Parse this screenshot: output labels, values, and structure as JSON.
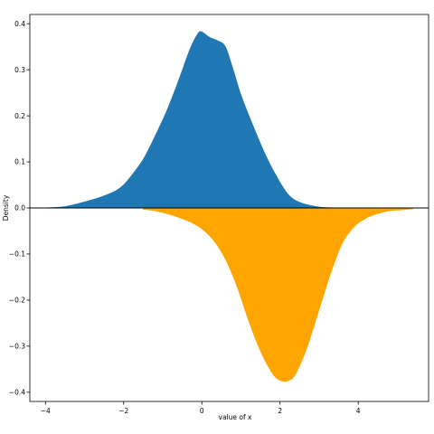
{
  "chart_data": {
    "type": "area",
    "title": "",
    "xlabel": "value of x",
    "ylabel": "Density",
    "xlim": [
      -4.4,
      5.8
    ],
    "ylim": [
      -0.42,
      0.42
    ],
    "grid": false,
    "legend": "none",
    "xticks": [
      -4,
      -2,
      0,
      2,
      4
    ],
    "xtick_labels": [
      "−4",
      "−2",
      "0",
      "2",
      "4"
    ],
    "yticks": [
      0.4,
      0.3,
      0.2,
      0.1,
      0.0,
      -0.1,
      -0.2,
      -0.3,
      -0.4
    ],
    "ytick_labels": [
      "0.4",
      "0.3",
      "0.2",
      "0.1",
      "0.0",
      "−0.1",
      "−0.2",
      "−0.3",
      "−0.4"
    ],
    "series": [
      {
        "color": "#1f77b4",
        "x": [
          -4.0,
          -3.5,
          -3.0,
          -2.6,
          -2.2,
          -2.0,
          -1.8,
          -1.5,
          -1.2,
          -0.9,
          -0.6,
          -0.3,
          -0.1,
          0.0,
          0.2,
          0.4,
          0.6,
          0.8,
          1.0,
          1.3,
          1.6,
          1.9,
          2.2,
          2.5,
          3.0,
          3.5
        ],
        "y": [
          0.0,
          0.003,
          0.013,
          0.023,
          0.037,
          0.05,
          0.07,
          0.105,
          0.155,
          0.21,
          0.275,
          0.345,
          0.378,
          0.382,
          0.37,
          0.363,
          0.35,
          0.3,
          0.245,
          0.18,
          0.12,
          0.07,
          0.03,
          0.012,
          0.002,
          0.0
        ]
      },
      {
        "color": "#ffa500",
        "x": [
          -1.5,
          -1.2,
          -0.9,
          -0.6,
          -0.3,
          0.0,
          0.3,
          0.6,
          0.9,
          1.2,
          1.5,
          1.8,
          2.0,
          2.2,
          2.4,
          2.7,
          3.0,
          3.3,
          3.6,
          3.9,
          4.2,
          4.5,
          4.8,
          5.1,
          5.4
        ],
        "y": [
          -0.003,
          -0.006,
          -0.012,
          -0.02,
          -0.03,
          -0.045,
          -0.07,
          -0.11,
          -0.17,
          -0.245,
          -0.31,
          -0.358,
          -0.374,
          -0.375,
          -0.36,
          -0.3,
          -0.22,
          -0.14,
          -0.075,
          -0.04,
          -0.022,
          -0.012,
          -0.006,
          -0.004,
          -0.002
        ]
      }
    ]
  }
}
